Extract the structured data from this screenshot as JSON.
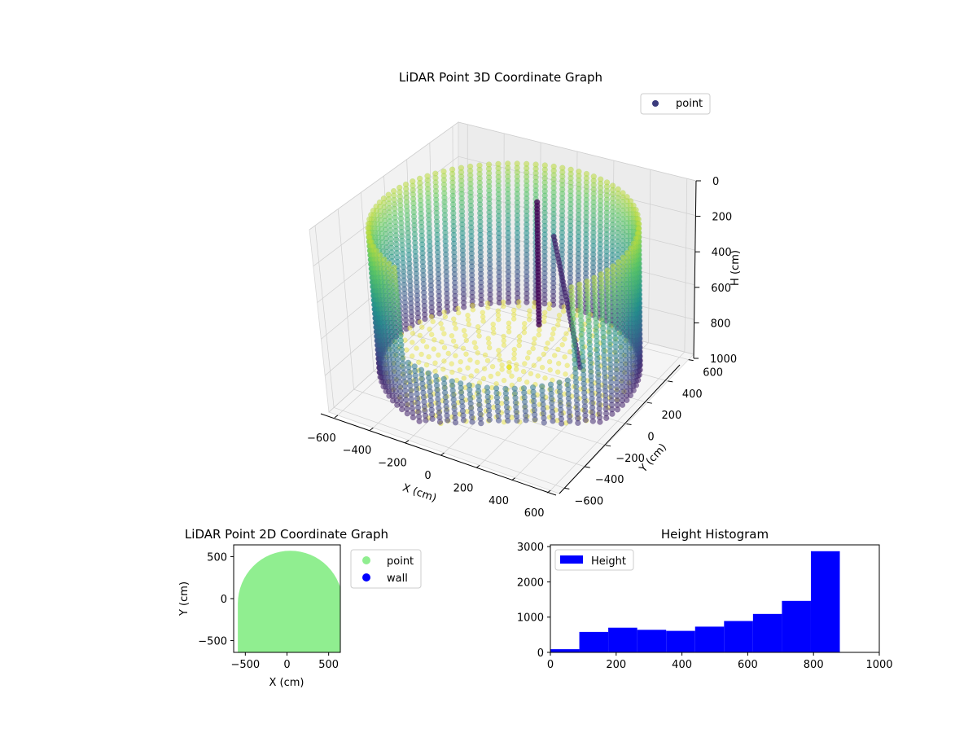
{
  "figure": {
    "colormap": [
      "#440154",
      "#3b528b",
      "#21918c",
      "#5ec962",
      "#fde725"
    ]
  },
  "chart_data": [
    {
      "type": "scatter",
      "title": "LiDAR Point 3D Coordinate Graph",
      "xlabel": "X (cm)",
      "ylabel": "Y (cm)",
      "zlabel": "H (cm)",
      "xticks": [
        -600,
        -400,
        -200,
        0,
        200,
        400,
        600
      ],
      "yticks": [
        -600,
        -400,
        -200,
        0,
        200,
        400,
        600
      ],
      "zticks": [
        0,
        200,
        400,
        600,
        800,
        1000
      ],
      "xlim": [
        -650,
        650
      ],
      "ylim": [
        -650,
        650
      ],
      "zlim": [
        0,
        1000
      ],
      "z_inverted": true,
      "legend": {
        "label": "point",
        "color": "#3b3b7d",
        "placement": "upper-right"
      },
      "grid": true,
      "colormap": "viridis",
      "description_values": {
        "wall_radius": 630,
        "wall_height_min": 100,
        "wall_height_max": 900,
        "floor_height": 880
      }
    },
    {
      "type": "scatter",
      "title": "LiDAR Point 2D Coordinate Graph",
      "xlabel": "X (cm)",
      "ylabel": "Y (cm)",
      "xticks": [
        -500,
        0,
        500
      ],
      "yticks": [
        -500,
        0,
        500
      ],
      "xlim": [
        -640,
        640
      ],
      "ylim": [
        -640,
        640
      ],
      "series": [
        {
          "name": "point",
          "color": "#90ee90"
        },
        {
          "name": "wall",
          "color": "#0000ff"
        }
      ],
      "legend_placement": "outside-right"
    },
    {
      "type": "bar",
      "title": "Height Histogram",
      "xticks": [
        0,
        200,
        400,
        600,
        800,
        1000
      ],
      "yticks": [
        0,
        1000,
        2000,
        3000
      ],
      "xlim": [
        0,
        1000
      ],
      "ylim": [
        0,
        3050
      ],
      "bin_edges": [
        0,
        88,
        176,
        264,
        352,
        440,
        528,
        616,
        704,
        792,
        880
      ],
      "values": [
        90,
        580,
        700,
        640,
        610,
        730,
        890,
        1090,
        1460,
        2870
      ],
      "series": [
        {
          "name": "Height",
          "color": "#0000ff"
        }
      ],
      "legend_placement": "upper-left"
    }
  ]
}
